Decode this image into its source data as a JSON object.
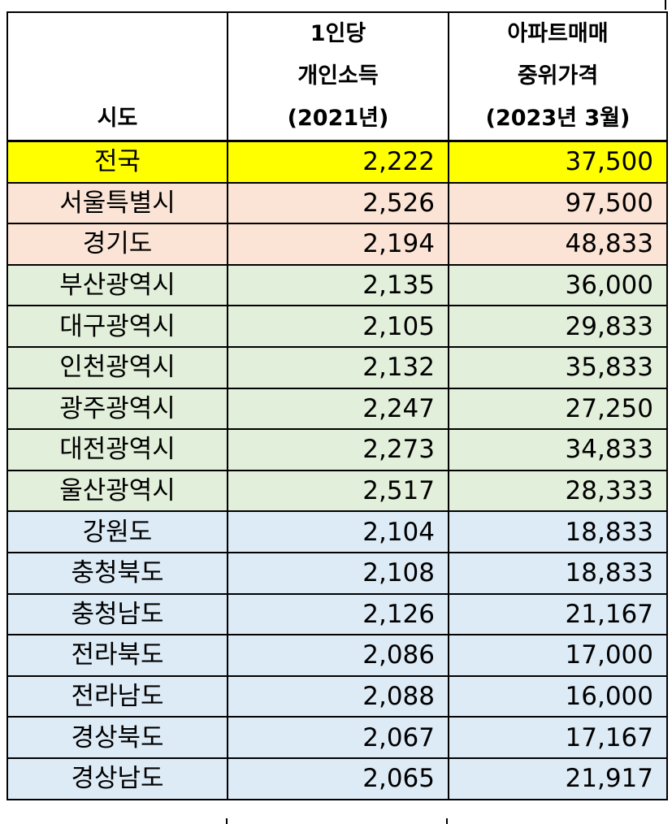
{
  "header": {
    "col1": [
      "시도"
    ],
    "col2": [
      "1인당",
      "개인소득",
      "(2021년)"
    ],
    "col3": [
      "아파트매매",
      "중위가격",
      "(2023년 3월)"
    ]
  },
  "rows": [
    {
      "region": "전국",
      "income": "2,222",
      "price": "37,500",
      "group": "national"
    },
    {
      "region": "서울특별시",
      "income": "2,526",
      "price": "97,500",
      "group": "capital"
    },
    {
      "region": "경기도",
      "income": "2,194",
      "price": "48,833",
      "group": "capital"
    },
    {
      "region": "부산광역시",
      "income": "2,135",
      "price": "36,000",
      "group": "metro"
    },
    {
      "region": "대구광역시",
      "income": "2,105",
      "price": "29,833",
      "group": "metro"
    },
    {
      "region": "인천광역시",
      "income": "2,132",
      "price": "35,833",
      "group": "metro"
    },
    {
      "region": "광주광역시",
      "income": "2,247",
      "price": "27,250",
      "group": "metro"
    },
    {
      "region": "대전광역시",
      "income": "2,273",
      "price": "34,833",
      "group": "metro"
    },
    {
      "region": "울산광역시",
      "income": "2,517",
      "price": "28,333",
      "group": "metro"
    },
    {
      "region": "강원도",
      "income": "2,104",
      "price": "18,833",
      "group": "province"
    },
    {
      "region": "충청북도",
      "income": "2,108",
      "price": "18,833",
      "group": "province"
    },
    {
      "region": "충청남도",
      "income": "2,126",
      "price": "21,167",
      "group": "province"
    },
    {
      "region": "전라북도",
      "income": "2,086",
      "price": "17,000",
      "group": "province"
    },
    {
      "region": "전라남도",
      "income": "2,088",
      "price": "16,000",
      "group": "province"
    },
    {
      "region": "경상북도",
      "income": "2,067",
      "price": "17,167",
      "group": "province"
    },
    {
      "region": "경상남도",
      "income": "2,065",
      "price": "21,917",
      "group": "province"
    }
  ],
  "colors": {
    "national": "#ffff00",
    "capital": "#fbe4d5",
    "metro": "#e2efda",
    "province": "#ddebf7",
    "border": "#000000"
  }
}
